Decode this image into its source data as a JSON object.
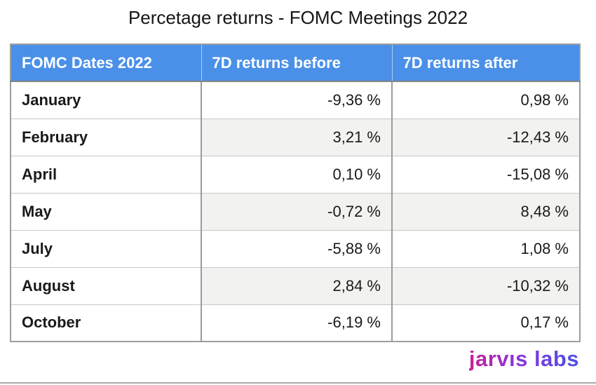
{
  "page": {
    "title": "Percetage returns - FOMC Meetings 2022"
  },
  "table": {
    "headers": [
      "FOMC Dates 2022",
      "7D returns before",
      "7D returns after"
    ],
    "rows": [
      {
        "month": "January",
        "before": "-9,36 %",
        "after": "0,98 %"
      },
      {
        "month": "February",
        "before": "3,21 %",
        "after": "-12,43 %"
      },
      {
        "month": "April",
        "before": "0,10 %",
        "after": "-15,08 %"
      },
      {
        "month": "May",
        "before": "-0,72 %",
        "after": "8,48 %"
      },
      {
        "month": "July",
        "before": "-5,88 %",
        "after": "1,08 %"
      },
      {
        "month": "August",
        "before": "2,84 %",
        "after": "-10,32 %"
      },
      {
        "month": "October",
        "before": "-6,19 %",
        "after": "0,17 %"
      }
    ]
  },
  "branding": {
    "logo_text": "jarvıs labs"
  },
  "colors": {
    "header_bg": "#4a90e8",
    "header_text": "#ffffff",
    "alt_row_bg": "#f2f2f0",
    "outer_border": "#9e9e9e",
    "row_border": "#c8c8c8",
    "column_border": "#9b9b9b",
    "logo_gradient_start": "#c91f96",
    "logo_gradient_mid": "#8a35dc",
    "logo_gradient_end": "#4a52e6"
  },
  "chart_data": {
    "type": "table",
    "title": "Percetage returns - FOMC Meetings 2022",
    "categories": [
      "January",
      "February",
      "April",
      "May",
      "July",
      "August",
      "October"
    ],
    "series": [
      {
        "name": "7D returns before",
        "values": [
          -9.36,
          3.21,
          0.1,
          -0.72,
          -5.88,
          2.84,
          -6.19
        ],
        "unit": "%"
      },
      {
        "name": "7D returns after",
        "values": [
          0.98,
          -12.43,
          -15.08,
          8.48,
          1.08,
          -10.32,
          0.17
        ],
        "unit": "%"
      }
    ],
    "notes": "Decimal comma formatting shown in source, e.g. -9,36 %"
  }
}
